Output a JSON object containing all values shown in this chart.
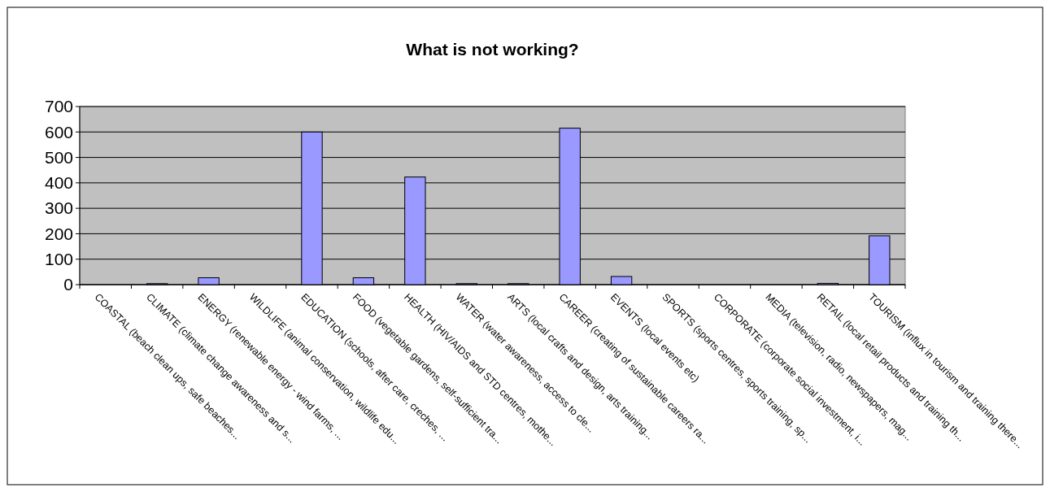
{
  "chart_data": {
    "type": "bar",
    "title": "What is not working?",
    "categories": [
      "COASTAL (beach clean ups, safe beaches...",
      "CLIMATE (climate change awareness and s...",
      "ENERGY (renewable energy - wind farms, ...",
      "WILDLIFE (animal conservation, wildlife edu...",
      "EDUCATION (schools, after care, creches, ...",
      "FOOD (vegetable gardens, self-sufficient tra...",
      "HEALTH (HIV/AIDS and STD centres, mothe...",
      "WATER (water awareness, access to cle...",
      "ARTS (local crafts and design, arts training...",
      "CAREER (creating of sustainable careers ra...",
      "EVENTS (local events etc)",
      "SPORTS (sports centres, sports training, sp...",
      "CORPORATE (corporate social investment, i...",
      "MEDIA (television, radio, newspapers, mag...",
      "RETAIL (local retail products and training th...",
      "TOURISM (influx in tourism and training there..."
    ],
    "values": [
      0,
      4,
      27,
      0,
      600,
      27,
      423,
      4,
      4,
      615,
      32,
      0,
      0,
      0,
      5,
      192
    ],
    "color": "#9999ff",
    "ylim": [
      0,
      700
    ],
    "yticks": [
      0,
      100,
      200,
      300,
      400,
      500,
      600,
      700
    ],
    "grid": "y"
  }
}
